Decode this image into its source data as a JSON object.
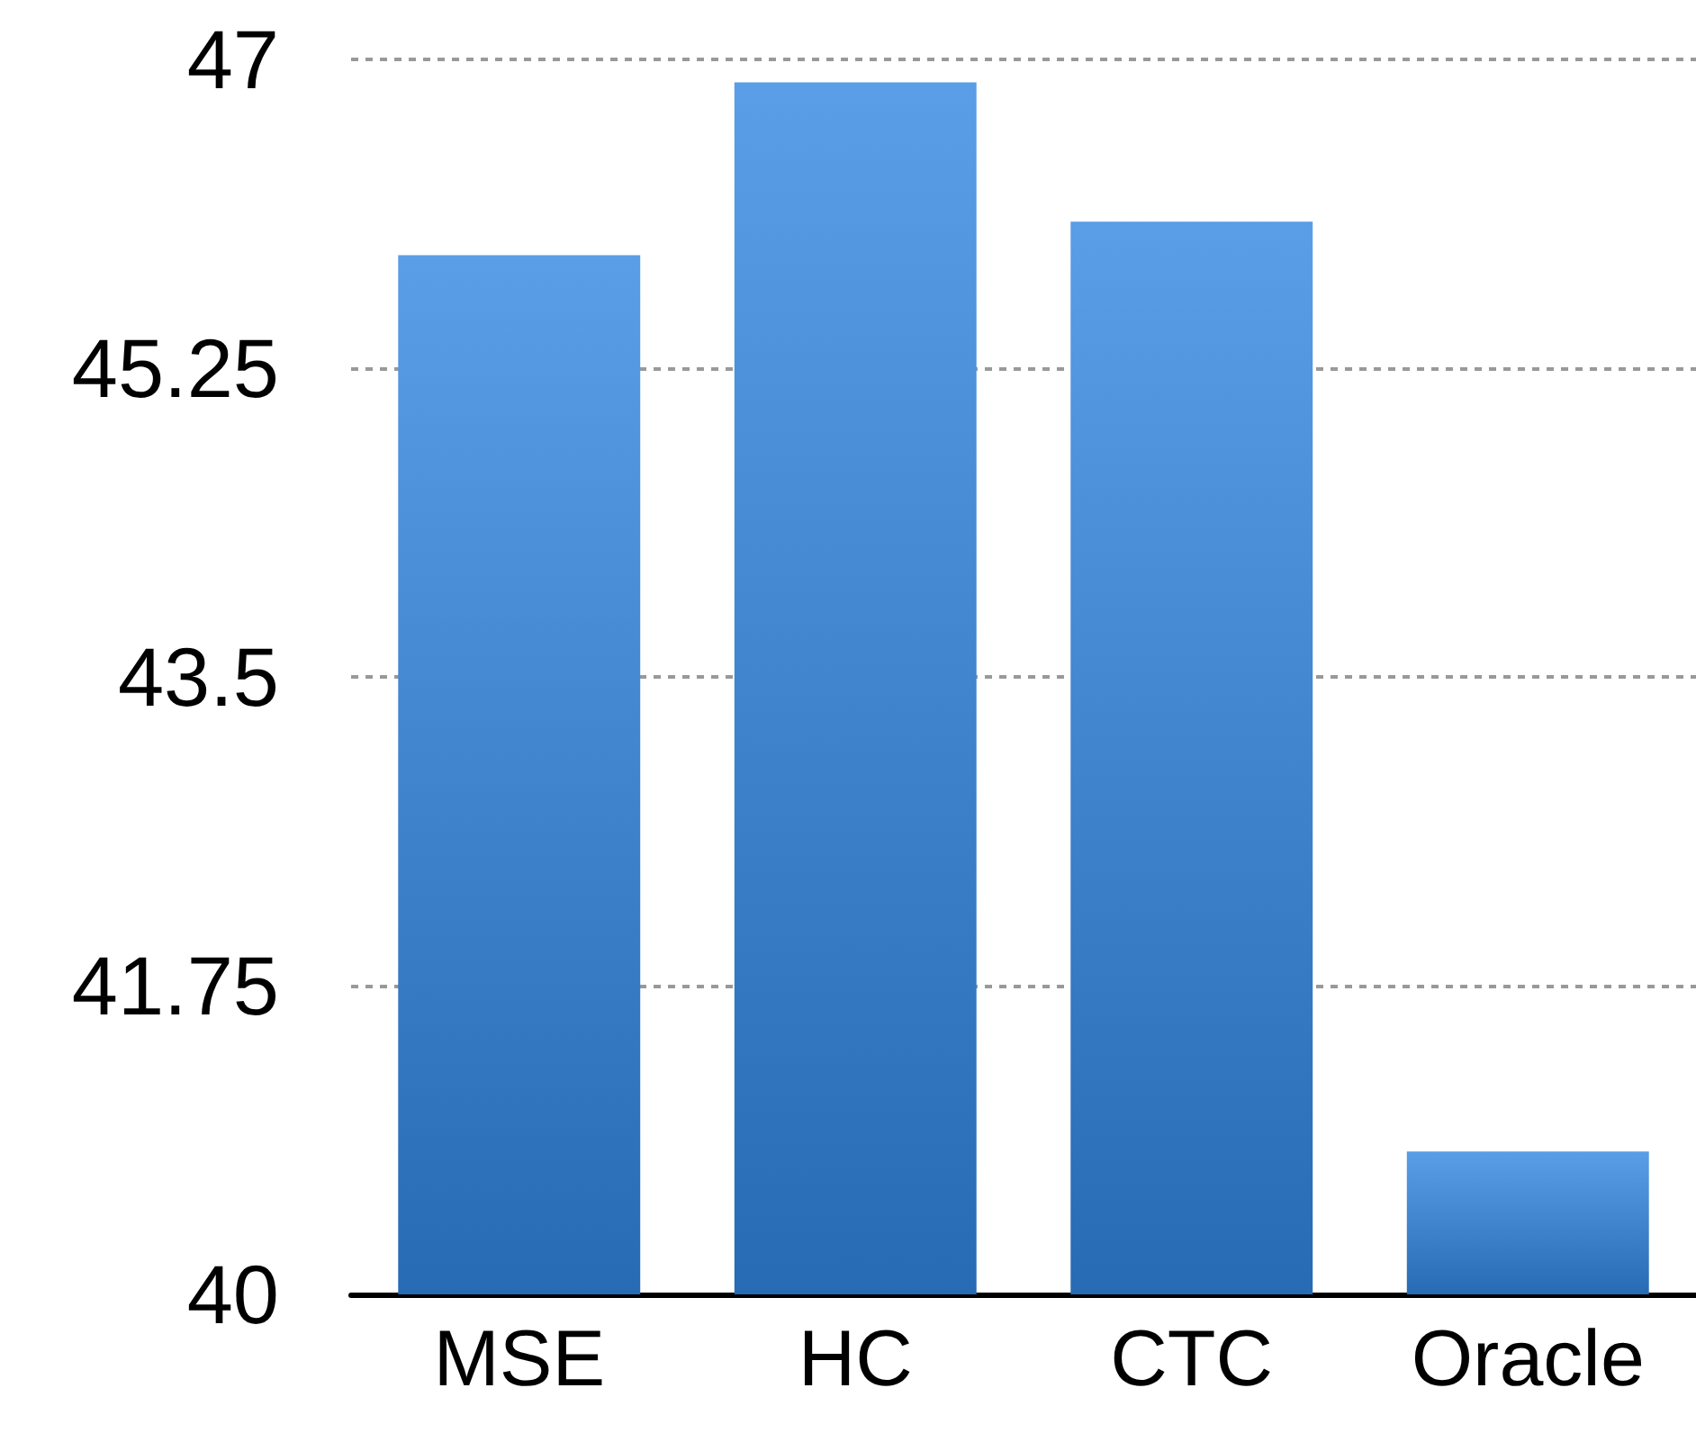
{
  "chart_data": {
    "type": "bar",
    "categories": [
      "MSE",
      "HC",
      "CTC",
      "Oracle"
    ],
    "values": [
      45.89,
      46.87,
      46.08,
      40.81
    ],
    "color": "#2f86e0",
    "ylim": [
      40,
      47
    ],
    "yticks": [
      40,
      41.75,
      43.5,
      45.25,
      47
    ],
    "grid": "y"
  }
}
